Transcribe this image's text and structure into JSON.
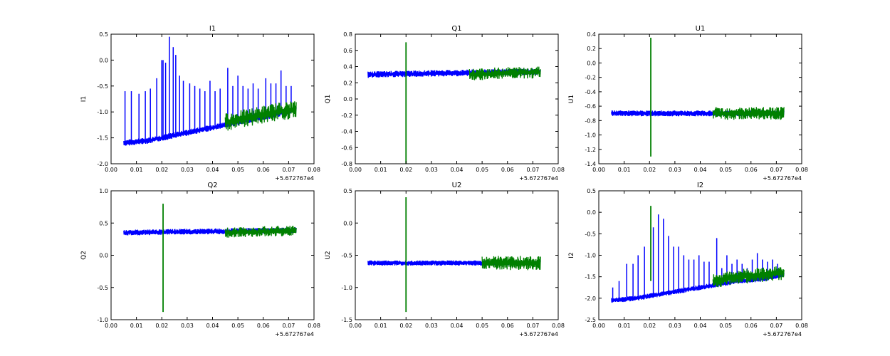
{
  "chart_data": [
    {
      "type": "line",
      "title": "I1",
      "ylabel": "I1",
      "xlim": [
        0.0,
        0.08
      ],
      "ylim": [
        -2.0,
        0.5
      ],
      "xticks": [
        "0.00",
        "0.01",
        "0.02",
        "0.03",
        "0.04",
        "0.05",
        "0.06",
        "0.07",
        "0.08"
      ],
      "yticks": [
        "-2.0",
        "-1.5",
        "-1.0",
        "-0.5",
        "0.0",
        "0.5"
      ],
      "x_offset_label": "+5.672767e4",
      "series": [
        {
          "color": "#0000ff",
          "points": [
            [
              0.005,
              -1.6
            ],
            [
              0.015,
              -1.55
            ],
            [
              0.025,
              -1.45
            ],
            [
              0.035,
              -1.35
            ],
            [
              0.045,
              -1.25
            ],
            [
              0.055,
              -1.15
            ],
            [
              0.065,
              -1.05
            ],
            [
              0.073,
              -0.95
            ]
          ],
          "band": 0.12,
          "spikes": [
            [
              0.0055,
              -0.6
            ],
            [
              0.008,
              -0.6
            ],
            [
              0.011,
              -0.65
            ],
            [
              0.0135,
              -0.6
            ],
            [
              0.0155,
              -0.55
            ],
            [
              0.018,
              -0.35
            ],
            [
              0.02,
              -0.0
            ],
            [
              0.0205,
              0.0
            ],
            [
              0.0215,
              -0.05
            ],
            [
              0.023,
              0.45
            ],
            [
              0.0245,
              0.25
            ],
            [
              0.0255,
              0.1
            ],
            [
              0.027,
              -0.3
            ],
            [
              0.0285,
              -0.4
            ],
            [
              0.031,
              -0.45
            ],
            [
              0.033,
              -0.5
            ],
            [
              0.035,
              -0.55
            ],
            [
              0.037,
              -0.6
            ],
            [
              0.039,
              -0.4
            ],
            [
              0.041,
              -0.6
            ],
            [
              0.043,
              -0.55
            ],
            [
              0.046,
              -0.15
            ],
            [
              0.048,
              -0.5
            ],
            [
              0.05,
              -0.3
            ],
            [
              0.052,
              -0.5
            ],
            [
              0.054,
              -0.55
            ],
            [
              0.056,
              -0.45
            ],
            [
              0.058,
              -0.55
            ],
            [
              0.061,
              -0.35
            ],
            [
              0.063,
              -0.45
            ],
            [
              0.065,
              -0.45
            ],
            [
              0.067,
              -0.2
            ],
            [
              0.069,
              -0.5
            ],
            [
              0.071,
              -0.5
            ]
          ]
        },
        {
          "color": "#008000",
          "points": [
            [
              0.045,
              -1.2
            ],
            [
              0.055,
              -1.1
            ],
            [
              0.065,
              -1.0
            ],
            [
              0.073,
              -0.95
            ]
          ],
          "band": 0.35
        }
      ]
    },
    {
      "type": "line",
      "title": "Q1",
      "ylabel": "Q1",
      "xlim": [
        0.0,
        0.08
      ],
      "ylim": [
        -0.8,
        0.8
      ],
      "xticks": [
        "0.00",
        "0.01",
        "0.02",
        "0.03",
        "0.04",
        "0.05",
        "0.06",
        "0.07",
        "0.08"
      ],
      "yticks": [
        "-0.8",
        "-0.6",
        "-0.4",
        "-0.2",
        "0.0",
        "0.2",
        "0.4",
        "0.6",
        "0.8"
      ],
      "x_offset_label": "+5.672767e4",
      "series": [
        {
          "color": "#0000ff",
          "points": [
            [
              0.005,
              0.3
            ],
            [
              0.02,
              0.31
            ],
            [
              0.04,
              0.32
            ],
            [
              0.06,
              0.33
            ],
            [
              0.073,
              0.34
            ]
          ],
          "band": 0.08,
          "spikes": []
        },
        {
          "color": "#008000",
          "points": [
            [
              0.045,
              0.3
            ],
            [
              0.06,
              0.32
            ],
            [
              0.073,
              0.33
            ]
          ],
          "band": 0.15,
          "vspike": [
            0.02,
            0.7,
            -0.8
          ]
        }
      ]
    },
    {
      "type": "line",
      "title": "U1",
      "ylabel": "U1",
      "xlim": [
        0.0,
        0.08
      ],
      "ylim": [
        -1.4,
        0.4
      ],
      "xticks": [
        "0.00",
        "0.01",
        "0.02",
        "0.03",
        "0.04",
        "0.05",
        "0.06",
        "0.07",
        "0.08"
      ],
      "yticks": [
        "-1.4",
        "-1.2",
        "-1.0",
        "-0.8",
        "-0.6",
        "-0.4",
        "-0.2",
        "0.0",
        "0.2",
        "0.4"
      ],
      "x_offset_label": "+5.672767e4",
      "series": [
        {
          "color": "#0000ff",
          "points": [
            [
              0.005,
              -0.7
            ],
            [
              0.02,
              -0.7
            ],
            [
              0.04,
              -0.7
            ],
            [
              0.06,
              -0.7
            ],
            [
              0.073,
              -0.7
            ]
          ],
          "band": 0.08,
          "spikes": []
        },
        {
          "color": "#008000",
          "points": [
            [
              0.045,
              -0.7
            ],
            [
              0.06,
              -0.7
            ],
            [
              0.073,
              -0.7
            ]
          ],
          "band": 0.18,
          "vspike": [
            0.0205,
            0.35,
            -1.3
          ]
        }
      ]
    },
    {
      "type": "line",
      "title": "Q2",
      "ylabel": "Q2",
      "xlim": [
        0.0,
        0.08
      ],
      "ylim": [
        -1.0,
        1.0
      ],
      "xticks": [
        "0.00",
        "0.01",
        "0.02",
        "0.03",
        "0.04",
        "0.05",
        "0.06",
        "0.07",
        "0.08"
      ],
      "yticks": [
        "-1.0",
        "-0.5",
        "0.0",
        "0.5",
        "1.0"
      ],
      "x_offset_label": "+5.672767e4",
      "series": [
        {
          "color": "#0000ff",
          "points": [
            [
              0.005,
              0.35
            ],
            [
              0.02,
              0.36
            ],
            [
              0.04,
              0.37
            ],
            [
              0.06,
              0.38
            ],
            [
              0.073,
              0.39
            ]
          ],
          "band": 0.09,
          "spikes": []
        },
        {
          "color": "#008000",
          "points": [
            [
              0.045,
              0.35
            ],
            [
              0.06,
              0.37
            ],
            [
              0.073,
              0.38
            ]
          ],
          "band": 0.16,
          "vspike": [
            0.0205,
            0.8,
            -0.88
          ]
        }
      ]
    },
    {
      "type": "line",
      "title": "U2",
      "ylabel": "U2",
      "xlim": [
        0.0,
        0.08
      ],
      "ylim": [
        -1.5,
        0.5
      ],
      "xticks": [
        "0.00",
        "0.01",
        "0.02",
        "0.03",
        "0.04",
        "0.05",
        "0.06",
        "0.07",
        "0.08"
      ],
      "yticks": [
        "-1.5",
        "-1.0",
        "-0.5",
        "0.0",
        "0.5"
      ],
      "x_offset_label": "+5.672767e4",
      "series": [
        {
          "color": "#0000ff",
          "points": [
            [
              0.005,
              -0.62
            ],
            [
              0.02,
              -0.62
            ],
            [
              0.04,
              -0.62
            ],
            [
              0.06,
              -0.62
            ],
            [
              0.073,
              -0.62
            ]
          ],
          "band": 0.08,
          "spikes": []
        },
        {
          "color": "#008000",
          "points": [
            [
              0.05,
              -0.62
            ],
            [
              0.06,
              -0.62
            ],
            [
              0.073,
              -0.62
            ]
          ],
          "band": 0.22,
          "vspike": [
            0.02,
            0.4,
            -1.38
          ]
        }
      ]
    },
    {
      "type": "line",
      "title": "I2",
      "ylabel": "I2",
      "xlim": [
        0.0,
        0.08
      ],
      "ylim": [
        -2.5,
        0.5
      ],
      "xticks": [
        "0.00",
        "0.01",
        "0.02",
        "0.03",
        "0.04",
        "0.05",
        "0.06",
        "0.07",
        "0.08"
      ],
      "yticks": [
        "-2.5",
        "-2.0",
        "-1.5",
        "-1.0",
        "-0.5",
        "0.0",
        "0.5"
      ],
      "x_offset_label": "+5.672767e4",
      "series": [
        {
          "color": "#0000ff",
          "points": [
            [
              0.005,
              -2.05
            ],
            [
              0.015,
              -2.0
            ],
            [
              0.025,
              -1.9
            ],
            [
              0.035,
              -1.8
            ],
            [
              0.045,
              -1.7
            ],
            [
              0.055,
              -1.6
            ],
            [
              0.065,
              -1.55
            ],
            [
              0.073,
              -1.45
            ]
          ],
          "band": 0.12,
          "spikes": [
            [
              0.0055,
              -1.75
            ],
            [
              0.008,
              -1.6
            ],
            [
              0.011,
              -1.2
            ],
            [
              0.0135,
              -1.2
            ],
            [
              0.0155,
              -1.0
            ],
            [
              0.018,
              -0.8
            ],
            [
              0.0215,
              -0.35
            ],
            [
              0.0235,
              -0.05
            ],
            [
              0.0255,
              -0.15
            ],
            [
              0.0275,
              -0.55
            ],
            [
              0.0295,
              -0.8
            ],
            [
              0.0315,
              -0.8
            ],
            [
              0.0335,
              -1.0
            ],
            [
              0.0355,
              -1.1
            ],
            [
              0.0375,
              -1.1
            ],
            [
              0.0395,
              -1.0
            ],
            [
              0.0415,
              -1.15
            ],
            [
              0.0435,
              -1.15
            ],
            [
              0.0465,
              -0.6
            ],
            [
              0.0485,
              -1.3
            ],
            [
              0.0505,
              -1.0
            ],
            [
              0.0525,
              -1.2
            ],
            [
              0.0545,
              -1.1
            ],
            [
              0.0565,
              -1.2
            ],
            [
              0.0585,
              -1.3
            ],
            [
              0.0605,
              -1.1
            ],
            [
              0.0625,
              -0.95
            ],
            [
              0.0645,
              -1.1
            ],
            [
              0.0665,
              -1.15
            ],
            [
              0.0685,
              -1.1
            ],
            [
              0.0705,
              -1.2
            ]
          ]
        },
        {
          "color": "#008000",
          "points": [
            [
              0.045,
              -1.6
            ],
            [
              0.055,
              -1.5
            ],
            [
              0.065,
              -1.45
            ],
            [
              0.073,
              -1.4
            ]
          ],
          "band": 0.35,
          "vspike": [
            0.0205,
            0.15,
            -1.6
          ]
        }
      ]
    }
  ]
}
